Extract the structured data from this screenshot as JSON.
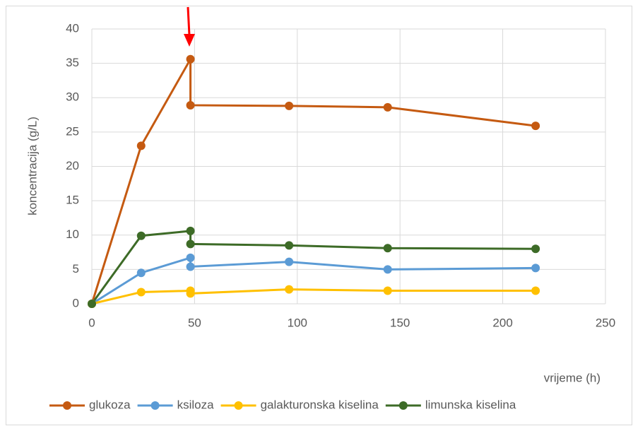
{
  "chart_data": {
    "type": "line",
    "x_label": "vrijeme (h)",
    "y_label": "koncentracija (g/L)",
    "x": [
      0,
      24,
      48,
      48,
      96,
      144,
      216
    ],
    "series": [
      {
        "name": "glukoza",
        "color": "#c55a11",
        "values": [
          0,
          23,
          35.6,
          28.9,
          28.8,
          28.6,
          25.9
        ]
      },
      {
        "name": "ksiloza",
        "color": "#5b9bd5",
        "values": [
          0,
          4.5,
          6.7,
          5.4,
          6.1,
          5.0,
          5.2
        ]
      },
      {
        "name": "galakturonska kiselina",
        "color": "#ffc000",
        "values": [
          0,
          1.7,
          1.9,
          1.5,
          2.1,
          1.9,
          1.9
        ]
      },
      {
        "name": "limunska kiselina",
        "color": "#3d6b27",
        "values": [
          0,
          9.9,
          10.6,
          8.7,
          8.5,
          8.1,
          8.0
        ]
      }
    ],
    "xlim": [
      0,
      250
    ],
    "xticks": [
      0,
      50,
      100,
      150,
      200,
      250
    ],
    "ylim": [
      0,
      40
    ],
    "yticks": [
      0,
      5,
      10,
      15,
      20,
      25,
      30,
      35,
      40
    ],
    "grid": true,
    "legend": "bottom"
  }
}
